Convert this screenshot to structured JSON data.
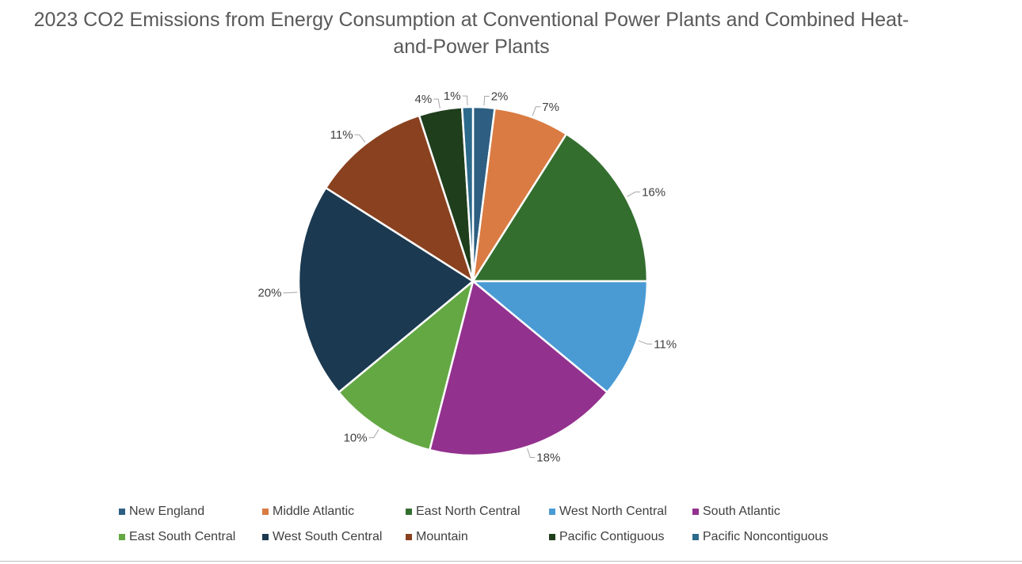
{
  "chart_data": {
    "type": "pie",
    "title": "2023 CO2 Emissions from Energy Consumption at Conventional Power Plants and Combined Heat-and-Power Plants",
    "legend_position": "bottom",
    "slices": [
      {
        "name": "New England",
        "value": 2,
        "label": "2%",
        "color": "#2E5F82"
      },
      {
        "name": "Middle Atlantic",
        "value": 7,
        "label": "7%",
        "color": "#D97B42"
      },
      {
        "name": "East North Central",
        "value": 16,
        "label": "16%",
        "color": "#336E2E"
      },
      {
        "name": "West North Central",
        "value": 11,
        "label": "11%",
        "color": "#4A9BD4"
      },
      {
        "name": "South Atlantic",
        "value": 18,
        "label": "18%",
        "color": "#93318E"
      },
      {
        "name": "East South Central",
        "value": 10,
        "label": "10%",
        "color": "#64A844"
      },
      {
        "name": "West South Central",
        "value": 20,
        "label": "20%",
        "color": "#1B3950"
      },
      {
        "name": "Mountain",
        "value": 11,
        "label": "11%",
        "color": "#8A411F"
      },
      {
        "name": "Pacific Contiguous",
        "value": 4,
        "label": "4%",
        "color": "#1F3E1C"
      },
      {
        "name": "Pacific Noncontiguous",
        "value": 1,
        "label": "1%",
        "color": "#2C6A8C"
      }
    ]
  }
}
